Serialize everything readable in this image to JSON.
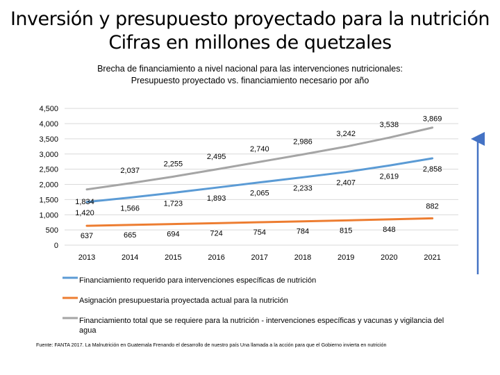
{
  "title_line1": "Inversión y presupuesto proyectado para la nutrición",
  "title_line2": "Cifras en millones de quetzales",
  "subtitle_line1": "Brecha de financiamiento a nivel nacional para las intervenciones nutricionales:",
  "subtitle_line2": "Presupuesto proyectado vs. financiamiento necesario por año",
  "source": "Fuente: FANTA 2017. La Malnutrición en Guatemala Frenando el desarrollo de nuestro país Una llamada a la acción para que el Gobierno invierta en nutrición",
  "colors": {
    "requerido": "#5b9bd5",
    "asignacion": "#ed7d31",
    "total": "#a5a5a5",
    "arrow": "#4472c4",
    "grid": "#d9d9d9"
  },
  "chart_data": {
    "type": "line",
    "categories": [
      "2013",
      "2014",
      "2015",
      "2016",
      "2017",
      "2018",
      "2019",
      "2020",
      "2021"
    ],
    "ylim": [
      0,
      4500
    ],
    "yticks": [
      "0",
      "500",
      "1,000",
      "1,500",
      "2,000",
      "2,500",
      "3,000",
      "3,500",
      "4,000",
      "4,500"
    ],
    "series": [
      {
        "name": "Financiamiento requerido para intervenciones específicas de nutrición",
        "values": [
          1420,
          1566,
          1723,
          1893,
          2065,
          2233,
          2407,
          2619,
          2858
        ],
        "labels": [
          "1,420",
          "1,566",
          "1,723",
          "1,893",
          "2,065",
          "2,233",
          "2,407",
          "2,619",
          "2,858"
        ]
      },
      {
        "name": "Asignación presupuestaria proyectada actual para la nutrición",
        "values": [
          637,
          665,
          694,
          724,
          754,
          784,
          815,
          848,
          882
        ],
        "labels": [
          "637",
          "665",
          "694",
          "724",
          "754",
          "784",
          "815",
          "848",
          "882"
        ]
      },
      {
        "name": "Financiamiento total que se requiere para la nutrición - intervenciones específicas y vacunas y vigilancia del agua",
        "values": [
          1834,
          2037,
          2255,
          2495,
          2740,
          2986,
          3242,
          3538,
          3869
        ],
        "labels": [
          "1,834",
          "2,037",
          "2,255",
          "2,495",
          "2,740",
          "2,986",
          "3,242",
          "3,538",
          "3,869"
        ]
      }
    ]
  }
}
